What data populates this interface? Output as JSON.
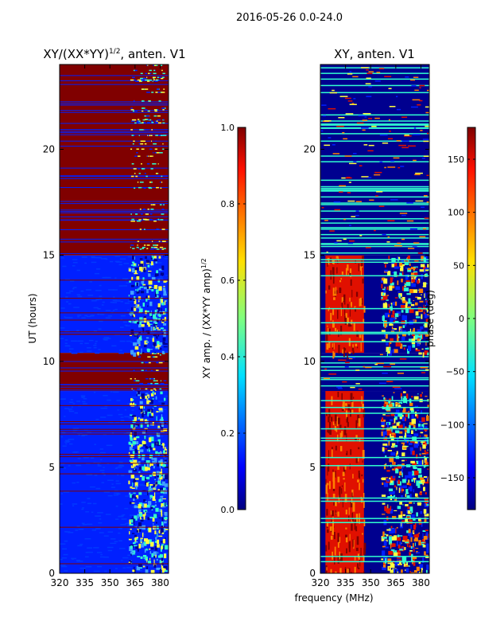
{
  "suptitle": "2016-05-26 0.0-24.0",
  "shared_xlabel": "frequency (MHz)",
  "colors": {
    "dark_red": "#800000",
    "dark_blue": "#00008f",
    "blue": "#0020ff",
    "cyan": "#30ffd0",
    "yellow": "#ffff40",
    "orange": "#ff8000",
    "red": "#e01000"
  },
  "chart_data": [
    {
      "type": "heatmap",
      "title_main": "XY/(XX*YY)",
      "title_sup": "1/2",
      "title_tail": ", anten. V1",
      "xlabel": "",
      "ylabel": "UT (hours)",
      "xlim": [
        320,
        385
      ],
      "ylim": [
        0,
        24
      ],
      "xticks": [
        320,
        335,
        350,
        365,
        380
      ],
      "yticks": [
        0,
        5,
        10,
        15,
        20
      ],
      "regions": [
        {
          "t0": 0.0,
          "t1": 8.6,
          "pattern": "blue-low-amplitude"
        },
        {
          "t0": 8.6,
          "t1": 10.4,
          "pattern": "dark-red-saturated"
        },
        {
          "t0": 10.4,
          "t1": 15.0,
          "pattern": "blue-low-amplitude"
        },
        {
          "t0": 15.0,
          "t1": 24.0,
          "pattern": "dark-red-saturated"
        }
      ],
      "colorbar": {
        "label_main": "XY amp. / (XX*YY amp)",
        "label_sup": "1/2",
        "min": 0.0,
        "max": 1.0,
        "ticks": [
          "0.0",
          "0.2",
          "0.4",
          "0.6",
          "0.8",
          "1.0"
        ],
        "tick_values": [
          0.0,
          0.2,
          0.4,
          0.6,
          0.8,
          1.0
        ]
      }
    },
    {
      "type": "heatmap",
      "title": "XY, anten. V1",
      "xlabel": "",
      "ylabel": "",
      "xlim": [
        320,
        385
      ],
      "ylim": [
        0,
        24
      ],
      "xticks": [
        320,
        335,
        350,
        365,
        380
      ],
      "yticks": [
        0,
        5,
        10,
        15,
        20
      ],
      "regions": [
        {
          "t0": 0.0,
          "t1": 8.6,
          "pattern": "red-phase-band"
        },
        {
          "t0": 8.6,
          "t1": 10.4,
          "pattern": "dark-blue-flagged"
        },
        {
          "t0": 10.4,
          "t1": 15.0,
          "pattern": "red-phase-band"
        },
        {
          "t0": 15.0,
          "t1": 24.0,
          "pattern": "dark-blue-flagged"
        }
      ],
      "colorbar": {
        "label": "phase (deg)",
        "min": -180,
        "max": 180,
        "ticks": [
          "150",
          "100",
          "50",
          "0",
          "−50",
          "−100",
          "−150"
        ],
        "tick_values": [
          150,
          100,
          50,
          0,
          -50,
          -100,
          -150
        ]
      }
    }
  ]
}
